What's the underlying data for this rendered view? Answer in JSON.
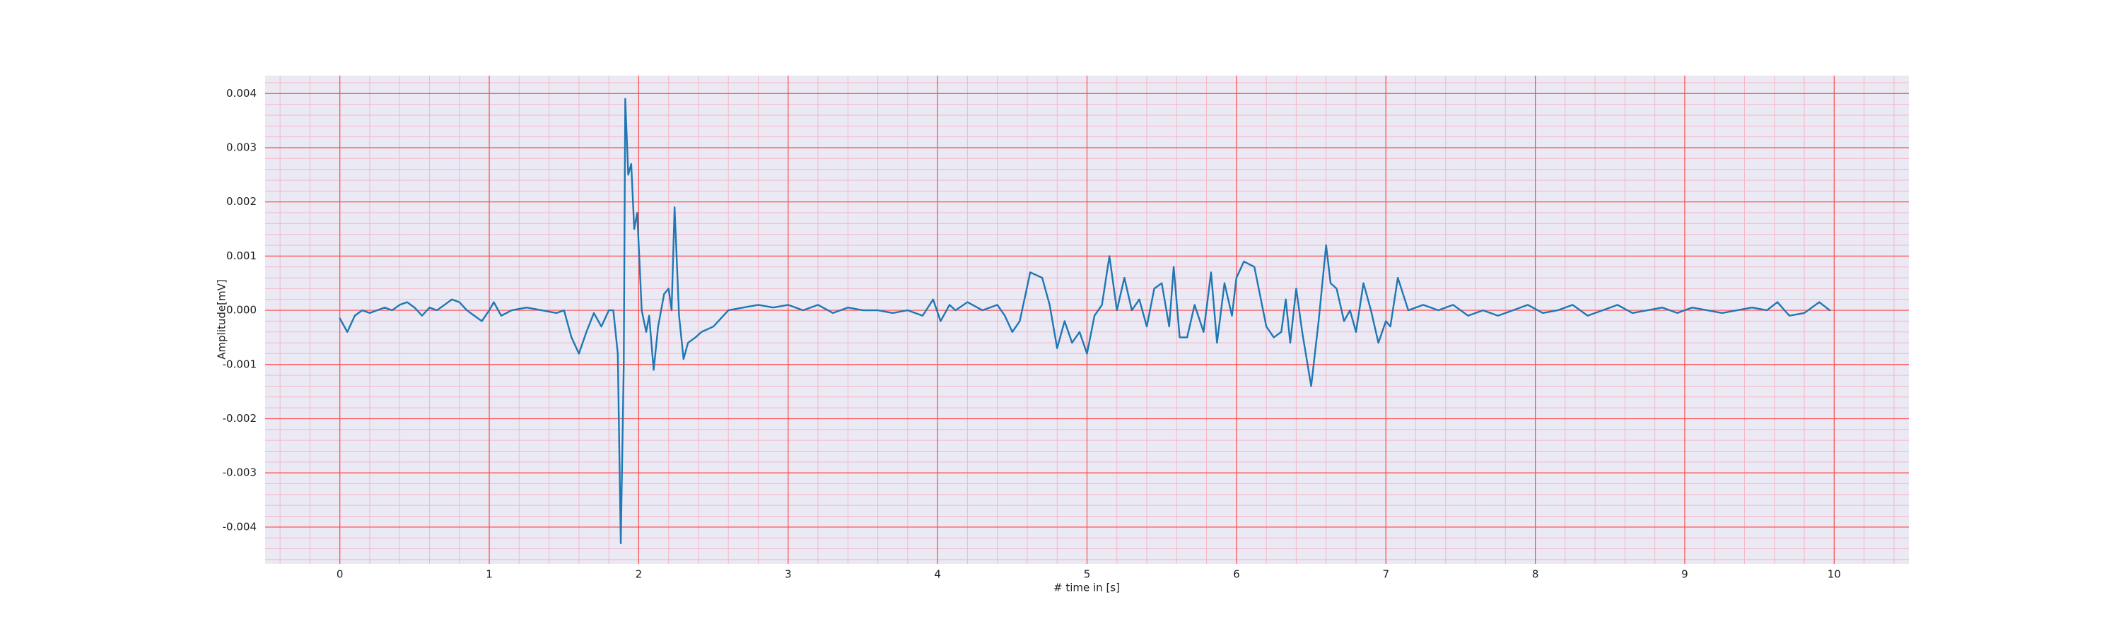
{
  "chart_data": {
    "type": "line",
    "xlabel": "# time in [s]",
    "ylabel": "Amplitude[mV]",
    "color": "#1f77b4",
    "background": "#eae9f4",
    "grid": true,
    "grid_color": "#ff4d4d",
    "minor_grid": true,
    "minor_grid_color": "#f5b8c8",
    "xlim": [
      -0.5,
      10.5
    ],
    "xticks": [
      0,
      1,
      2,
      3,
      4,
      5,
      6,
      7,
      8,
      9,
      10
    ],
    "ylim": [
      -0.00468,
      0.00433
    ],
    "yticks": [
      -0.004,
      -0.003,
      -0.002,
      -0.001,
      {
        "value": 0,
        "label": "0.000"
      },
      0.001,
      0.002,
      0.003,
      0.004
    ],
    "x": [
      0,
      0.05,
      0.1,
      0.15,
      0.2,
      0.3,
      0.35,
      0.4,
      0.45,
      0.5,
      0.55,
      0.6,
      0.65,
      0.7,
      0.75,
      0.8,
      0.85,
      0.9,
      0.95,
      1.0,
      1.03,
      1.08,
      1.15,
      1.25,
      1.35,
      1.45,
      1.5,
      1.55,
      1.6,
      1.65,
      1.7,
      1.75,
      1.8,
      1.83,
      1.86,
      1.88,
      1.9,
      1.91,
      1.93,
      1.95,
      1.97,
      1.99,
      2.02,
      2.05,
      2.07,
      2.1,
      2.13,
      2.17,
      2.2,
      2.22,
      2.24,
      2.27,
      2.3,
      2.33,
      2.38,
      2.42,
      2.5,
      2.6,
      2.7,
      2.8,
      2.9,
      3.0,
      3.1,
      3.2,
      3.3,
      3.4,
      3.5,
      3.6,
      3.7,
      3.8,
      3.9,
      3.97,
      4.02,
      4.08,
      4.12,
      4.2,
      4.3,
      4.4,
      4.45,
      4.5,
      4.55,
      4.62,
      4.7,
      4.75,
      4.8,
      4.85,
      4.9,
      4.95,
      5.0,
      5.05,
      5.1,
      5.15,
      5.2,
      5.25,
      5.3,
      5.35,
      5.4,
      5.45,
      5.5,
      5.55,
      5.58,
      5.62,
      5.67,
      5.72,
      5.78,
      5.83,
      5.87,
      5.92,
      5.97,
      6.0,
      6.05,
      6.12,
      6.2,
      6.25,
      6.3,
      6.33,
      6.36,
      6.4,
      6.44,
      6.5,
      6.55,
      6.6,
      6.63,
      6.67,
      6.72,
      6.76,
      6.8,
      6.85,
      6.9,
      6.95,
      7.0,
      7.03,
      7.08,
      7.15,
      7.25,
      7.35,
      7.45,
      7.55,
      7.65,
      7.75,
      7.85,
      7.95,
      8.05,
      8.15,
      8.25,
      8.35,
      8.45,
      8.55,
      8.65,
      8.75,
      8.85,
      8.95,
      9.05,
      9.15,
      9.25,
      9.35,
      9.45,
      9.55,
      9.62,
      9.7,
      9.8,
      9.9,
      9.97
    ],
    "values": [
      -0.00015,
      -0.0004,
      -0.0001,
      0,
      -5e-05,
      5e-05,
      0,
      0.0001,
      0.00015,
      5e-05,
      -0.0001,
      5e-05,
      0,
      0.0001,
      0.0002,
      0.00015,
      0,
      -0.0001,
      -0.0002,
      0,
      0.00015,
      -0.0001,
      0,
      5e-05,
      0,
      -5e-05,
      0,
      -0.0005,
      -0.0008,
      -0.0004,
      -5e-05,
      -0.0003,
      0,
      0,
      -0.0008,
      -0.0043,
      -0.001,
      0.0039,
      0.0025,
      0.0027,
      0.0015,
      0.0018,
      0,
      -0.0004,
      -0.0001,
      -0.0011,
      -0.0003,
      0.0003,
      0.0004,
      0,
      0.0019,
      -0.0001,
      -0.0009,
      -0.0006,
      -0.0005,
      -0.0004,
      -0.0003,
      0,
      5e-05,
      0.0001,
      5e-05,
      0.0001,
      0,
      0.0001,
      -5e-05,
      5e-05,
      0,
      0,
      -5e-05,
      0,
      -0.0001,
      0.0002,
      -0.0002,
      0.0001,
      0,
      0.00015,
      0,
      0.0001,
      -0.0001,
      -0.0004,
      -0.0002,
      0.0007,
      0.0006,
      0.0001,
      -0.0007,
      -0.0002,
      -0.0006,
      -0.0004,
      -0.0008,
      -0.0001,
      0.0001,
      0.001,
      0,
      0.0006,
      0,
      0.0002,
      -0.0003,
      0.0004,
      0.0005,
      -0.0003,
      0.0008,
      -0.0005,
      -0.0005,
      0.0001,
      -0.0004,
      0.0007,
      -0.0006,
      0.0005,
      -0.0001,
      0.0006,
      0.0009,
      0.0008,
      -0.0003,
      -0.0005,
      -0.0004,
      0.0002,
      -0.0006,
      0.0004,
      -0.0004,
      -0.0014,
      -0.0002,
      0.0012,
      0.0005,
      0.0004,
      -0.0002,
      0,
      -0.0004,
      0.0005,
      0,
      -0.0006,
      -0.0002,
      -0.0003,
      0.0006,
      0,
      0.0001,
      0,
      0.0001,
      -0.0001,
      0,
      -0.0001,
      0,
      0.0001,
      -5e-05,
      0,
      0.0001,
      -0.0001,
      0,
      0.0001,
      -5e-05,
      0,
      5e-05,
      -5e-05,
      5e-05,
      0,
      -5e-05,
      0,
      5e-05,
      0,
      0.00015,
      -0.0001,
      -5e-05,
      0.00015,
      0
    ]
  }
}
